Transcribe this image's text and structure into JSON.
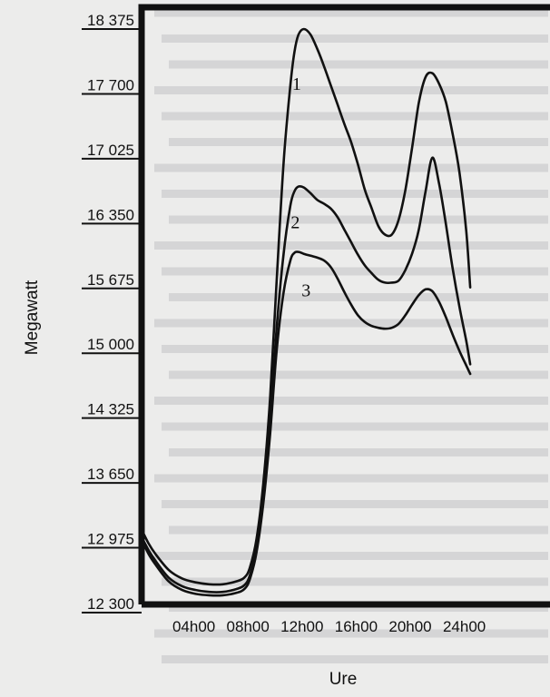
{
  "chart_data": {
    "type": "line",
    "xlabel": "Ure",
    "ylabel": "Megawatt",
    "x_ticks": [
      "04h00",
      "08h00",
      "12h00",
      "16h00",
      "20h00",
      "24h00"
    ],
    "y_ticks": [
      "18 375",
      "17 700",
      "17 025",
      "16 350",
      "15 675",
      "15 000",
      "14 325",
      "13 650",
      "12 975",
      "12 300"
    ],
    "xlim": [
      0,
      24
    ],
    "ylim": [
      12300,
      18375
    ],
    "grid": false,
    "legend": "none",
    "series": [
      {
        "name": "1",
        "x": [
          0,
          0.5,
          1,
          2,
          3,
          4,
          5,
          6,
          7,
          7.6,
          8,
          8.5,
          9,
          9.5,
          10,
          10.5,
          11,
          11.3,
          11.6,
          12,
          12.5,
          13,
          13.5,
          14,
          14.5,
          15,
          15.5,
          16,
          16.5,
          17,
          17.5,
          18,
          18.5,
          19,
          19.5,
          20,
          20.5,
          21,
          21.5,
          22,
          22.5,
          23,
          23.5,
          24,
          24.3
        ],
        "y": [
          13080,
          12940,
          12830,
          12660,
          12570,
          12530,
          12510,
          12510,
          12540,
          12580,
          12680,
          12980,
          13560,
          14450,
          15700,
          16900,
          17700,
          18050,
          18230,
          18290,
          18230,
          18080,
          17900,
          17700,
          17500,
          17300,
          17110,
          16880,
          16620,
          16430,
          16240,
          16150,
          16150,
          16300,
          16610,
          17050,
          17520,
          17790,
          17830,
          17720,
          17530,
          17200,
          16800,
          16200,
          15600
        ]
      },
      {
        "name": "2",
        "x": [
          0,
          0.5,
          1,
          2,
          3,
          4,
          5,
          6,
          7,
          7.6,
          8,
          8.5,
          9,
          9.5,
          10,
          10.5,
          11,
          11.3,
          11.6,
          12,
          12.5,
          13,
          13.5,
          14,
          14.5,
          15,
          15.5,
          16,
          16.5,
          17,
          17.5,
          18,
          18.5,
          19,
          19.5,
          20,
          20.5,
          21,
          21.5,
          22,
          22.5,
          23,
          23.5,
          24,
          24.3
        ],
        "y": [
          13000,
          12870,
          12760,
          12580,
          12490,
          12450,
          12430,
          12430,
          12460,
          12500,
          12600,
          12880,
          13420,
          14200,
          15200,
          15950,
          16450,
          16600,
          16650,
          16640,
          16580,
          16510,
          16470,
          16420,
          16330,
          16200,
          16070,
          15940,
          15830,
          15750,
          15680,
          15650,
          15650,
          15670,
          15780,
          15950,
          16200,
          16600,
          16950,
          16680,
          16260,
          15800,
          15400,
          15050,
          14800
        ]
      },
      {
        "name": "3",
        "x": [
          0,
          0.5,
          1,
          2,
          3,
          4,
          5,
          6,
          7,
          7.6,
          8,
          8.5,
          9,
          9.5,
          10,
          10.5,
          11,
          11.3,
          11.6,
          12,
          12.5,
          13,
          13.5,
          14,
          14.5,
          15,
          15.5,
          16,
          16.5,
          17,
          17.5,
          18,
          18.5,
          19,
          19.5,
          20,
          20.5,
          21,
          21.5,
          22,
          22.5,
          23,
          23.5,
          24,
          24.3
        ],
        "y": [
          12980,
          12830,
          12720,
          12540,
          12450,
          12410,
          12395,
          12395,
          12420,
          12460,
          12560,
          12840,
          13350,
          14070,
          14960,
          15550,
          15880,
          15960,
          15970,
          15950,
          15930,
          15910,
          15880,
          15810,
          15690,
          15550,
          15420,
          15310,
          15240,
          15200,
          15180,
          15170,
          15180,
          15220,
          15310,
          15420,
          15520,
          15580,
          15560,
          15450,
          15290,
          15110,
          14940,
          14790,
          14700
        ]
      }
    ]
  }
}
